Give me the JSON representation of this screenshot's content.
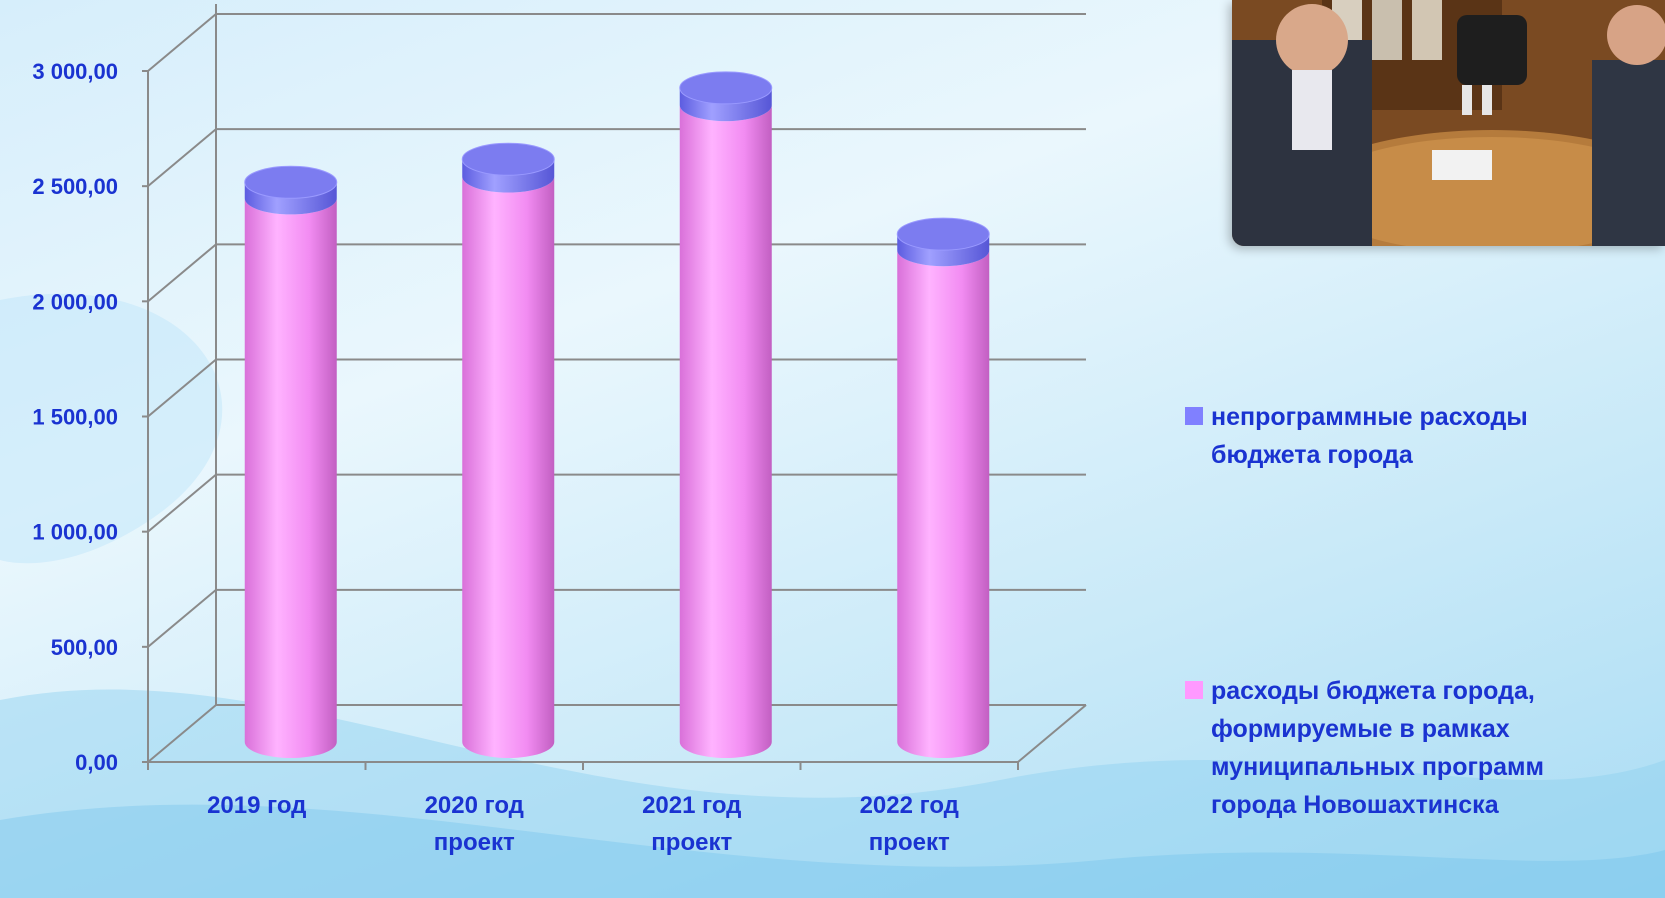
{
  "chart_data": {
    "type": "bar",
    "style": "3d-cylinder-stacked",
    "categories": [
      [
        "2019 год"
      ],
      [
        "2020 год",
        "проект"
      ],
      [
        "2021 год",
        "проект"
      ],
      [
        "2022 год",
        "проект"
      ]
    ],
    "series": [
      {
        "name": "расходы бюджета города, формируемые в рамках муниципальных программ города Новошахтинска",
        "color": "#ff99ff",
        "values": [
          2360,
          2455,
          2765,
          2135
        ]
      },
      {
        "name": "непрограммные расходы бюджета города",
        "color": "#8080ff",
        "values": [
          70,
          75,
          75,
          70
        ]
      }
    ],
    "y_ticks": [
      "0,00",
      "500,00",
      "1 000,00",
      "1 500,00",
      "2 000,00",
      "2 500,00",
      "3 000,00"
    ],
    "ylim": [
      0,
      3000
    ],
    "grid": true,
    "legend_position": "right"
  },
  "legend": {
    "items": [
      {
        "label_lines": [
          "непрограммные расходы",
          "бюджета города"
        ],
        "color": "#8080ff"
      },
      {
        "label_lines": [
          "расходы бюджета города,",
          "формируемые в рамках",
          "муниципальных программ",
          "города Новошахтинска"
        ],
        "color": "#ff99ff"
      }
    ]
  },
  "photo": {
    "icon": "meeting-photo"
  }
}
